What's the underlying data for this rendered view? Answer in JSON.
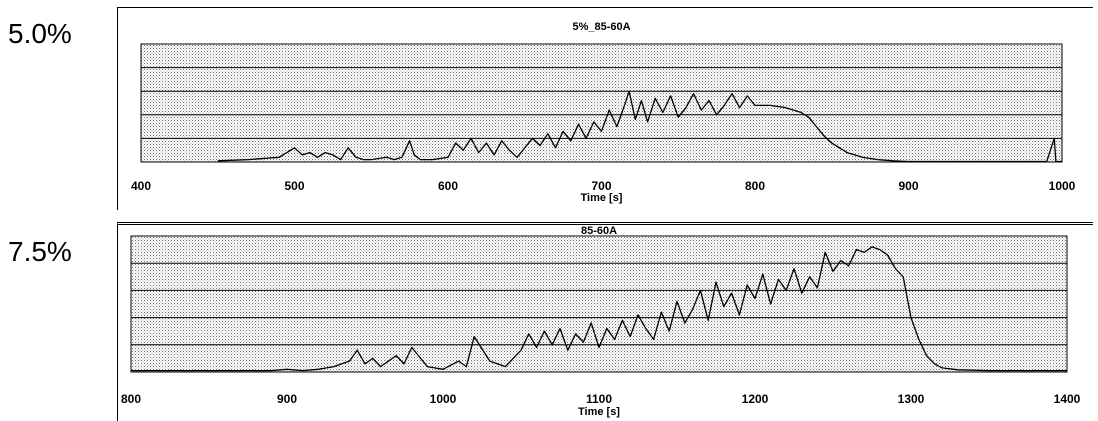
{
  "rows": {
    "top_label": "5.0%",
    "bottom_label": "7.5%"
  },
  "chart_data": [
    {
      "type": "line",
      "title": "5%_85-60A",
      "xlabel": "Time [s]",
      "ylabel": "",
      "xlim": [
        400,
        1000
      ],
      "xticks": [
        "400",
        "500",
        "600",
        "700",
        "800",
        "900",
        "1000"
      ],
      "ylim": [
        0,
        5
      ],
      "grid": true,
      "x": [
        450,
        470,
        490,
        495,
        500,
        505,
        510,
        515,
        520,
        525,
        530,
        535,
        540,
        545,
        550,
        560,
        565,
        570,
        575,
        578,
        582,
        590,
        600,
        605,
        610,
        615,
        620,
        625,
        630,
        635,
        640,
        645,
        650,
        655,
        660,
        665,
        670,
        675,
        680,
        685,
        690,
        695,
        700,
        705,
        710,
        715,
        718,
        722,
        726,
        730,
        735,
        740,
        745,
        750,
        755,
        760,
        765,
        770,
        775,
        780,
        785,
        790,
        795,
        800,
        810,
        820,
        830,
        835,
        840,
        845,
        850,
        855,
        860,
        865,
        870,
        880,
        890,
        900,
        940,
        990,
        995,
        996,
        1000
      ],
      "values": [
        0.05,
        0.1,
        0.2,
        0.4,
        0.6,
        0.3,
        0.4,
        0.2,
        0.4,
        0.3,
        0.1,
        0.6,
        0.2,
        0.1,
        0.1,
        0.2,
        0.1,
        0.2,
        0.9,
        0.3,
        0.1,
        0.1,
        0.2,
        0.8,
        0.5,
        1.0,
        0.4,
        0.8,
        0.3,
        0.9,
        0.5,
        0.2,
        0.6,
        1.0,
        0.7,
        1.2,
        0.6,
        1.3,
        0.9,
        1.6,
        1.0,
        1.7,
        1.3,
        2.2,
        1.5,
        2.4,
        3.0,
        1.8,
        2.6,
        1.7,
        2.7,
        2.1,
        2.8,
        1.9,
        2.3,
        2.9,
        2.2,
        2.6,
        2.0,
        2.4,
        2.9,
        2.3,
        2.8,
        2.4,
        2.4,
        2.3,
        2.1,
        1.9,
        1.5,
        1.1,
        0.8,
        0.6,
        0.4,
        0.3,
        0.2,
        0.1,
        0.05,
        0.02,
        0.02,
        0.02,
        1.0,
        0.02,
        0.02
      ]
    },
    {
      "type": "line",
      "title": "85-60A",
      "xlabel": "Time [s]",
      "ylabel": "",
      "xlim": [
        800,
        1400
      ],
      "xticks": [
        "800",
        "900",
        "1000",
        "1100",
        "1200",
        "1300",
        "1400"
      ],
      "ylim": [
        0,
        5
      ],
      "grid": true,
      "x": [
        800,
        850,
        890,
        900,
        910,
        920,
        930,
        940,
        945,
        950,
        955,
        960,
        965,
        970,
        975,
        980,
        990,
        1000,
        1010,
        1015,
        1020,
        1030,
        1040,
        1050,
        1055,
        1060,
        1065,
        1070,
        1075,
        1080,
        1085,
        1090,
        1095,
        1100,
        1105,
        1110,
        1115,
        1120,
        1125,
        1130,
        1135,
        1140,
        1145,
        1150,
        1155,
        1160,
        1165,
        1170,
        1175,
        1180,
        1185,
        1190,
        1195,
        1200,
        1205,
        1210,
        1215,
        1220,
        1225,
        1230,
        1235,
        1240,
        1245,
        1250,
        1255,
        1260,
        1265,
        1270,
        1275,
        1280,
        1285,
        1290,
        1295,
        1300,
        1305,
        1310,
        1315,
        1320,
        1330,
        1350,
        1400
      ],
      "values": [
        0.05,
        0.05,
        0.05,
        0.1,
        0.05,
        0.1,
        0.2,
        0.4,
        0.8,
        0.3,
        0.5,
        0.2,
        0.4,
        0.6,
        0.3,
        0.9,
        0.2,
        0.1,
        0.4,
        0.2,
        1.3,
        0.4,
        0.2,
        0.8,
        1.4,
        0.9,
        1.5,
        1.0,
        1.6,
        0.8,
        1.4,
        1.1,
        1.8,
        0.9,
        1.6,
        1.2,
        1.9,
        1.3,
        2.1,
        1.6,
        1.2,
        2.2,
        1.5,
        2.6,
        1.8,
        2.3,
        3.0,
        1.9,
        3.3,
        2.4,
        2.9,
        2.1,
        3.2,
        2.7,
        3.6,
        2.5,
        3.4,
        3.0,
        3.8,
        2.9,
        3.5,
        3.1,
        4.4,
        3.7,
        4.1,
        3.9,
        4.5,
        4.4,
        4.6,
        4.5,
        4.3,
        3.8,
        3.5,
        2.0,
        1.2,
        0.6,
        0.3,
        0.15,
        0.08,
        0.05,
        0.05
      ]
    }
  ]
}
